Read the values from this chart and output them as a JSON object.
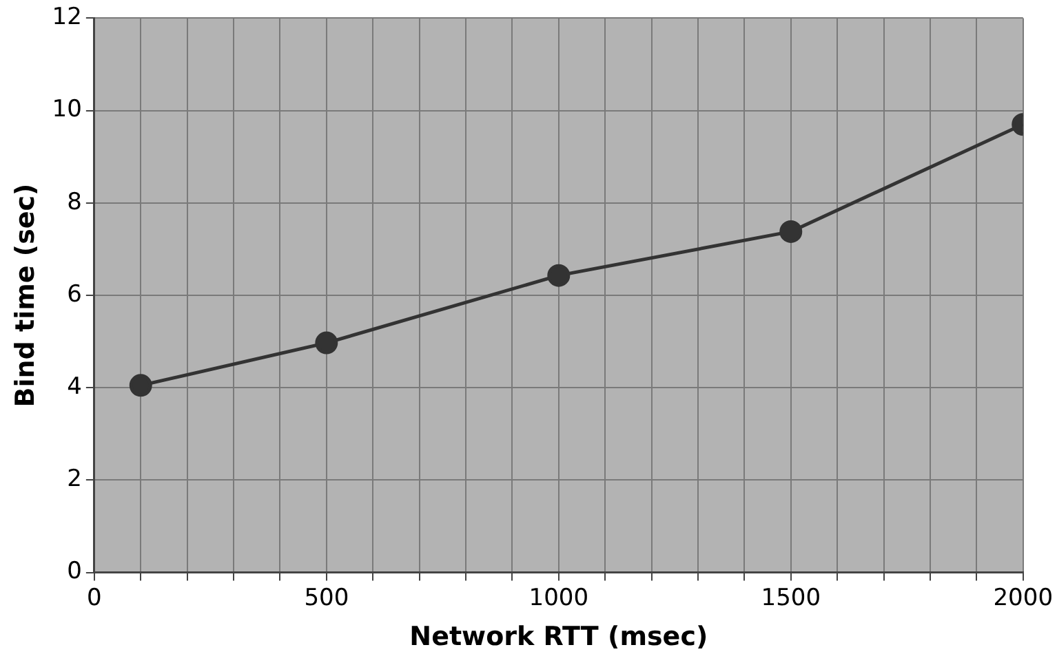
{
  "chart_data": {
    "type": "line",
    "xlabel": "Network RTT (msec)",
    "ylabel": "Bind time (sec)",
    "x": [
      100,
      500,
      1000,
      1500,
      2000
    ],
    "series": [
      {
        "color": "#333333",
        "values": [
          4.05,
          4.97,
          6.43,
          7.38,
          9.7
        ]
      }
    ],
    "xlim": [
      0,
      2000
    ],
    "xticks": [
      0,
      {
        "value": 100,
        "label": null
      },
      {
        "value": 200,
        "label": null
      },
      {
        "value": 300,
        "label": null
      },
      {
        "value": 400,
        "label": null
      },
      500,
      {
        "value": 600,
        "label": null
      },
      {
        "value": 700,
        "label": null
      },
      {
        "value": 800,
        "label": null
      },
      {
        "value": 900,
        "label": null
      },
      1000,
      {
        "value": 1100,
        "label": null
      },
      {
        "value": 1200,
        "label": null
      },
      {
        "value": 1300,
        "label": null
      },
      {
        "value": 1400,
        "label": null
      },
      1500,
      {
        "value": 1600,
        "label": null
      },
      {
        "value": 1700,
        "label": null
      },
      {
        "value": 1800,
        "label": null
      },
      {
        "value": 1900,
        "label": null
      },
      2000
    ],
    "ylim": [
      0,
      12
    ],
    "yticks": [
      0,
      2,
      4,
      6,
      8,
      10,
      12
    ],
    "grid": true,
    "legend": false,
    "marker": "circle",
    "line_style": "solid"
  }
}
